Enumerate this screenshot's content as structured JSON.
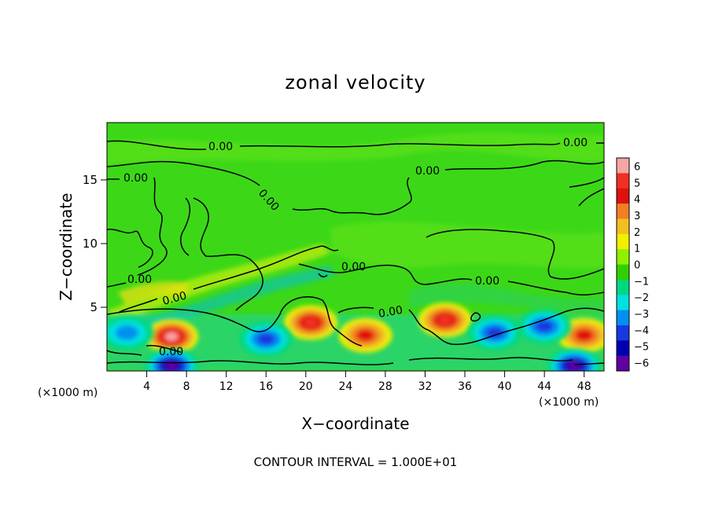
{
  "chart_data": {
    "type": "heatmap",
    "title": "zonal velocity",
    "xlabel": "X−coordinate",
    "ylabel": "Z−coordinate",
    "x_unit_left": "(×1000 m)",
    "x_unit_right": "(×1000 m)",
    "footer": "CONTOUR INTERVAL = 1.000E+01",
    "xlim": [
      0,
      50
    ],
    "ylim": [
      0,
      19.5
    ],
    "x_ticks": [
      "4",
      "8",
      "12",
      "16",
      "20",
      "24",
      "28",
      "32",
      "36",
      "40",
      "44",
      "48"
    ],
    "y_ticks": [
      "5",
      "10",
      "15"
    ],
    "colorbar": {
      "ticks": [
        "6",
        "5",
        "4",
        "3",
        "2",
        "1",
        "0",
        "−1",
        "−2",
        "−3",
        "−4",
        "−5",
        "−6"
      ],
      "colors": [
        "#f4a6a6",
        "#f03020",
        "#e01010",
        "#f08020",
        "#f0c020",
        "#f0f000",
        "#90f000",
        "#30d000",
        "#00d880",
        "#00e0e0",
        "#0090f0",
        "#1838e0",
        "#0000b0",
        "#6000a0"
      ]
    },
    "contour_labels": [
      "0.00",
      "0.00",
      "0.00",
      "0.00",
      "0.00",
      "0.00",
      "0.00",
      "0.00",
      "0.00",
      "0.00",
      "0.00"
    ],
    "background_value": 0,
    "features": [
      {
        "x": 6.5,
        "z": 2.7,
        "value": 6
      },
      {
        "x": 20.5,
        "z": 3.8,
        "value": 4.5
      },
      {
        "x": 34,
        "z": 4,
        "value": 4.5
      },
      {
        "x": 26,
        "z": 2.8,
        "value": 3.5
      },
      {
        "x": 48,
        "z": 2.8,
        "value": 3.5
      },
      {
        "x": 6.5,
        "z": 0.4,
        "value": -6
      },
      {
        "x": 47,
        "z": 0.4,
        "value": -6
      },
      {
        "x": 39,
        "z": 3,
        "value": -3.5
      },
      {
        "x": 16,
        "z": 2.5,
        "value": -3.5
      },
      {
        "x": 2,
        "z": 3,
        "value": -3
      },
      {
        "x": 44,
        "z": 3.5,
        "value": -3.5
      }
    ]
  }
}
